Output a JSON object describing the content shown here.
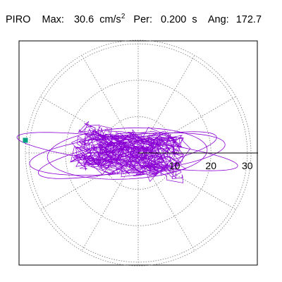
{
  "header": {
    "station": "PIRO",
    "max_label": "Max:",
    "max_value": "30.6",
    "max_unit": "cm/s",
    "max_unit_exp": "2",
    "per_label": "Per:",
    "per_value": "0.200",
    "per_unit": "s",
    "ang_label": "Ang:",
    "ang_value": "172.7"
  },
  "colors": {
    "trace": "#8a00d4",
    "marker": "#00a080",
    "grid": "#777777",
    "frame": "#000000",
    "background": "#ffffff"
  },
  "chart_data": {
    "type": "polar",
    "radial_max": 31,
    "radial_ticks": [
      10,
      20,
      30
    ],
    "radial_tick_labels": [
      "10",
      "20",
      "30"
    ],
    "angular_grid_deg": 30,
    "grid": true,
    "max_amplitude": 30.6,
    "period_s": 0.2,
    "max_angle_deg": 172.7,
    "marker_angle_deg": 180,
    "marker_radius": 31
  }
}
